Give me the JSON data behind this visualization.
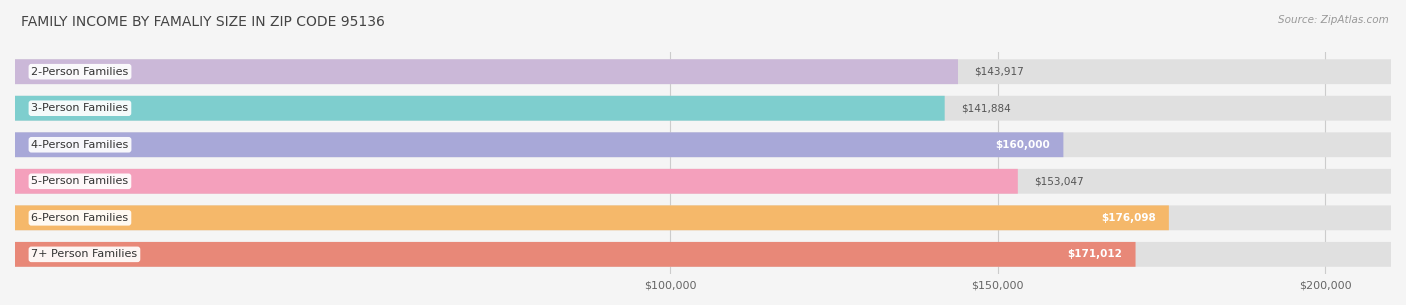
{
  "title": "FAMILY INCOME BY FAMALIY SIZE IN ZIP CODE 95136",
  "source": "Source: ZipAtlas.com",
  "categories": [
    "2-Person Families",
    "3-Person Families",
    "4-Person Families",
    "5-Person Families",
    "6-Person Families",
    "7+ Person Families"
  ],
  "values": [
    143917,
    141884,
    160000,
    153047,
    176098,
    171012
  ],
  "bar_colors": [
    "#cbb8d8",
    "#7ecece",
    "#a8a8d8",
    "#f4a0bc",
    "#f5b86a",
    "#e88878"
  ],
  "bar_bg_color": "#e0e0e0",
  "value_labels": [
    "$143,917",
    "$141,884",
    "$160,000",
    "$153,047",
    "$176,098",
    "$171,012"
  ],
  "value_label_white": [
    false,
    false,
    true,
    false,
    true,
    true
  ],
  "xlim_data": [
    0,
    210000
  ],
  "xaxis_min": 80000,
  "xaxis_max": 210000,
  "xticks": [
    100000,
    150000,
    200000
  ],
  "xtick_labels": [
    "$100,000",
    "$150,000",
    "$200,000"
  ],
  "background_color": "#f5f5f5",
  "bar_height": 0.68,
  "label_fontsize": 8.0,
  "value_fontsize": 7.5,
  "title_fontsize": 10.0,
  "source_fontsize": 7.5
}
